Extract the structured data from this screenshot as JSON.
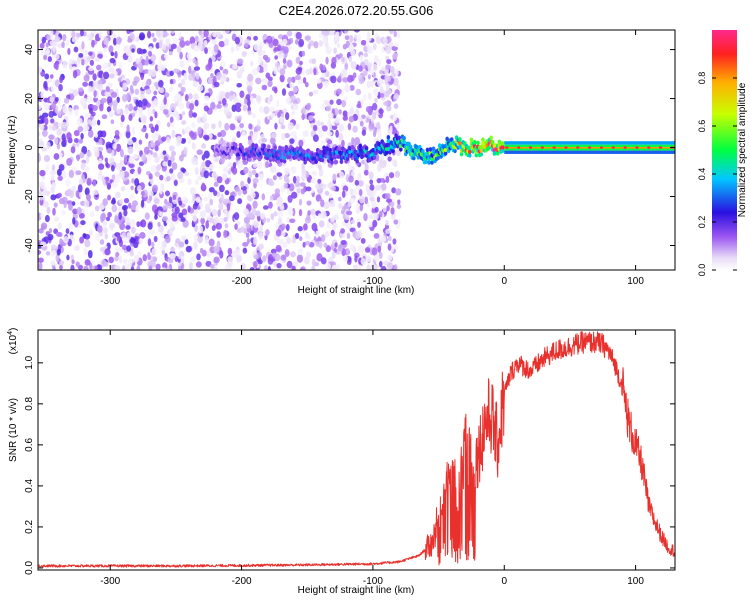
{
  "title": "C2E4.2026.072.20.55.G06",
  "chart_data": [
    {
      "type": "heatmap",
      "title": "C2E4.2026.072.20.55.G06",
      "xlabel": "Height of straight line (km)",
      "ylabel": "Frequency (Hz)",
      "xlim": [
        -355,
        130
      ],
      "ylim": [
        -50,
        48
      ],
      "x_ticks": [
        -300,
        -200,
        -100,
        0,
        100
      ],
      "x_tick_labels": [
        "-300",
        "-200",
        "-100",
        "0",
        "100"
      ],
      "y_ticks": [
        -40,
        -20,
        0,
        20,
        40
      ],
      "y_tick_labels": [
        "-40",
        "-20",
        "0",
        "20",
        "40"
      ],
      "colorbar": {
        "label": "Normalized spectral amplitude",
        "range": [
          0,
          1
        ],
        "ticks": [
          0.0,
          0.2,
          0.4,
          0.6,
          0.8
        ],
        "tick_labels": [
          "0.0",
          "0.2",
          "0.4",
          "0.6",
          "0.8"
        ]
      },
      "noise_region": {
        "x_range": [
          -355,
          -80
        ],
        "freq_range": [
          -50,
          48
        ],
        "amplitude_range": [
          0.0,
          0.12
        ]
      },
      "ridge": [
        {
          "x": -220,
          "freq": -1,
          "amp": 0.15
        },
        {
          "x": -190,
          "freq": -2,
          "amp": 0.25
        },
        {
          "x": -160,
          "freq": -3,
          "amp": 0.3
        },
        {
          "x": -130,
          "freq": -3,
          "amp": 0.3
        },
        {
          "x": -100,
          "freq": -2,
          "amp": 0.35
        },
        {
          "x": -80,
          "freq": 3,
          "amp": 0.45
        },
        {
          "x": -70,
          "freq": -2,
          "amp": 0.55
        },
        {
          "x": -55,
          "freq": -4,
          "amp": 0.5
        },
        {
          "x": -40,
          "freq": 2,
          "amp": 0.55
        },
        {
          "x": -30,
          "freq": 0,
          "amp": 0.75
        },
        {
          "x": -20,
          "freq": 0,
          "amp": 0.85
        },
        {
          "x": -10,
          "freq": 1,
          "amp": 0.85
        },
        {
          "x": 0,
          "freq": 0,
          "amp": 0.92
        },
        {
          "x": 50,
          "freq": 0,
          "amp": 0.95
        },
        {
          "x": 95,
          "freq": 0,
          "amp": 0.97
        },
        {
          "x": 130,
          "freq": 0,
          "amp": 0.96
        }
      ]
    },
    {
      "type": "line",
      "xlabel": "Height of straight line (km)",
      "ylabel": "SNR (10 * v/v)",
      "y_multiplier": "(x10",
      "y_multiplier_exp": "4",
      "y_multiplier_close": ")",
      "xlim": [
        -355,
        130
      ],
      "ylim": [
        -0.01,
        1.16
      ],
      "x_ticks": [
        -300,
        -200,
        -100,
        0,
        100
      ],
      "x_tick_labels": [
        "-300",
        "-200",
        "-100",
        "0",
        "100"
      ],
      "y_ticks": [
        0.0,
        0.2,
        0.4,
        0.6,
        0.8,
        1.0
      ],
      "y_tick_labels": [
        "0.0",
        "0.2",
        "0.4",
        "0.6",
        "0.8",
        "1.0"
      ],
      "series": [
        {
          "name": "SNR",
          "color": "#e8302c",
          "x": [
            -355,
            -300,
            -250,
            -200,
            -150,
            -100,
            -80,
            -65,
            -55,
            -50,
            -45,
            -40,
            -35,
            -30,
            -25,
            -20,
            -15,
            -10,
            -5,
            0,
            5,
            10,
            20,
            30,
            40,
            50,
            60,
            70,
            75,
            80,
            85,
            90,
            95,
            100,
            105,
            110,
            115,
            120,
            125,
            130
          ],
          "y": [
            0.01,
            0.01,
            0.01,
            0.012,
            0.015,
            0.02,
            0.03,
            0.06,
            0.12,
            0.25,
            0.4,
            0.45,
            0.35,
            0.6,
            0.5,
            0.55,
            0.7,
            0.75,
            0.6,
            0.85,
            0.95,
            1.0,
            0.96,
            1.02,
            1.06,
            1.08,
            1.1,
            1.1,
            1.09,
            1.05,
            0.98,
            0.88,
            0.7,
            0.6,
            0.5,
            0.3,
            0.22,
            0.15,
            0.1,
            0.08
          ]
        }
      ]
    }
  ]
}
